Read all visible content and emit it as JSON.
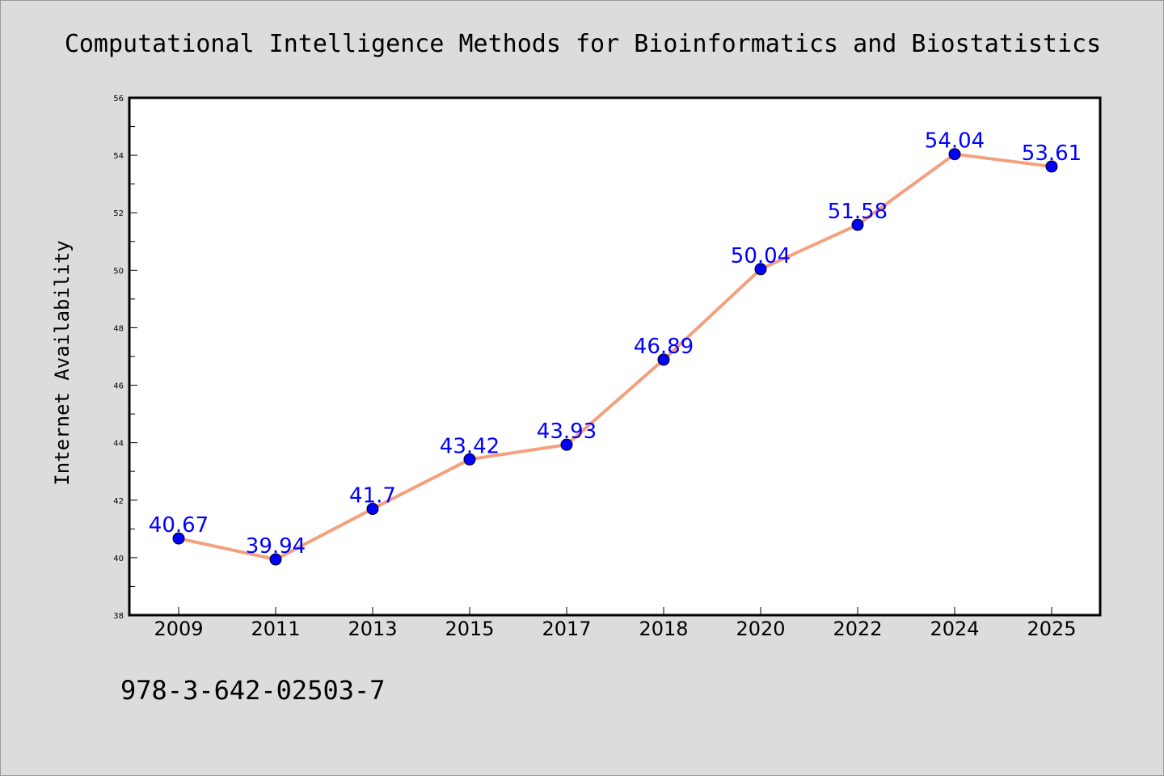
{
  "chart_data": {
    "type": "line",
    "title": "Computational Intelligence Methods for Bioinformatics and Biostatistics",
    "xlabel": "",
    "ylabel": "Internet Availability",
    "categories": [
      "2009",
      "2011",
      "2013",
      "2015",
      "2017",
      "2018",
      "2020",
      "2022",
      "2024",
      "2025"
    ],
    "series": [
      {
        "values": [
          40.67,
          39.94,
          41.7,
          43.42,
          43.93,
          46.89,
          50.04,
          51.58,
          54.04,
          53.61
        ],
        "data_labels": [
          "40.67",
          "39.94",
          "41.7",
          "43.42",
          "43.93",
          "46.89",
          "50.04",
          "51.58",
          "54.04",
          "53.61"
        ],
        "line_color": "#f4a07f",
        "marker_color": "#0000ff",
        "label_color": "#0000ff"
      }
    ],
    "ylim": [
      38,
      56
    ],
    "yticks": [
      "38",
      "40",
      "42",
      "44",
      "46",
      "48",
      "50",
      "52",
      "54",
      "56"
    ],
    "grid": false,
    "legend": "none",
    "annotation": "978-3-642-02503-7",
    "background_color": "#dcdcdc",
    "plot_background_color": "#ffffff"
  }
}
